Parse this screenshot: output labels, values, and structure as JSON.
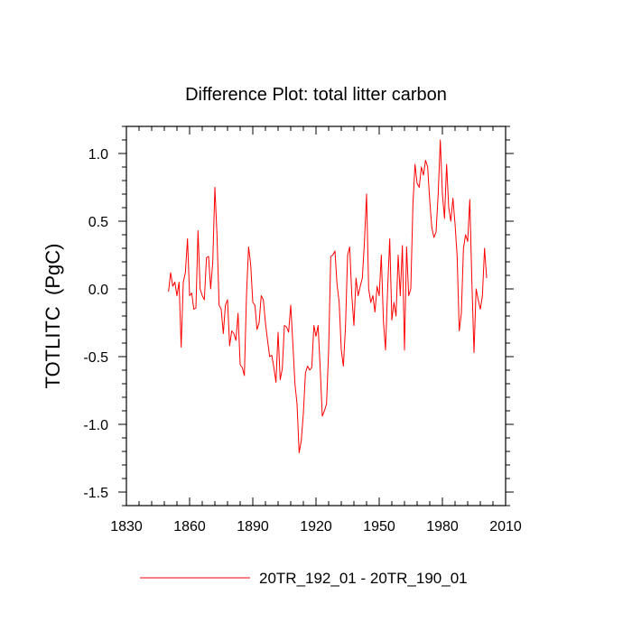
{
  "chart_data": {
    "type": "line",
    "title": "Difference Plot: total litter carbon",
    "xlabel": "",
    "ylabel": "TOTLITC  (PgC)",
    "xlim": [
      1830,
      2010
    ],
    "ylim": [
      -1.6,
      1.2
    ],
    "x_ticks": [
      1830,
      1860,
      1890,
      1920,
      1950,
      1980,
      2010
    ],
    "x_tick_labels": [
      "1830",
      "1860",
      "1890",
      "1920",
      "1950",
      "1980",
      "2010"
    ],
    "y_ticks": [
      -1.5,
      -1.0,
      -0.5,
      0.0,
      0.5,
      1.0
    ],
    "y_tick_labels": [
      "-1.5",
      "-1.0",
      "-0.5",
      "0.0",
      "0.5",
      "1.0"
    ],
    "legend_position": "bottom",
    "series": [
      {
        "name": "20TR_192_01 - 20TR_190_01",
        "color": "#ff0000",
        "x_start": 1850,
        "x_step": 1,
        "values": [
          -0.02,
          0.12,
          0.02,
          0.05,
          -0.05,
          0.05,
          -0.43,
          0.05,
          0.12,
          0.37,
          -0.05,
          -0.03,
          -0.15,
          -0.14,
          0.43,
          0.0,
          -0.05,
          -0.08,
          0.23,
          0.24,
          0.0,
          0.2,
          0.75,
          0.4,
          -0.12,
          -0.15,
          -0.33,
          -0.12,
          -0.08,
          -0.42,
          -0.31,
          -0.33,
          -0.38,
          -0.18,
          -0.56,
          -0.58,
          -0.64,
          -0.05,
          0.31,
          0.18,
          -0.1,
          -0.12,
          -0.3,
          -0.25,
          -0.05,
          -0.08,
          -0.25,
          -0.38,
          -0.5,
          -0.49,
          -0.58,
          -0.69,
          -0.32,
          -0.67,
          -0.59,
          -0.27,
          -0.28,
          -0.32,
          -0.12,
          -0.4,
          -0.7,
          -0.85,
          -1.21,
          -1.12,
          -0.92,
          -0.62,
          -0.57,
          -0.6,
          -0.58,
          -0.27,
          -0.35,
          -0.27,
          -0.59,
          -0.94,
          -0.9,
          -0.85,
          -0.45,
          0.24,
          0.25,
          0.28,
          0.03,
          -0.1,
          -0.45,
          -0.57,
          -0.28,
          0.25,
          0.31,
          -0.05,
          -0.27,
          0.08,
          -0.05,
          0.02,
          0.08,
          0.35,
          0.7,
          0.0,
          -0.1,
          -0.05,
          -0.17,
          0.02,
          -0.05,
          0.25,
          -0.24,
          -0.45,
          0.0,
          0.37,
          -0.23,
          -0.1,
          -0.2,
          0.25,
          -0.05,
          0.32,
          -0.45,
          0.31,
          -0.05,
          0.0,
          0.62,
          0.92,
          0.78,
          0.75,
          0.9,
          0.84,
          0.95,
          0.9,
          0.65,
          0.45,
          0.38,
          0.42,
          0.7,
          1.1,
          0.7,
          0.52,
          0.92,
          0.6,
          0.5,
          0.67,
          0.48,
          0.24,
          -0.31,
          -0.18,
          0.3,
          0.4,
          0.35,
          0.66,
          0.05,
          -0.47,
          0.0,
          -0.08,
          -0.15,
          -0.05,
          0.3,
          0.08
        ]
      }
    ]
  }
}
